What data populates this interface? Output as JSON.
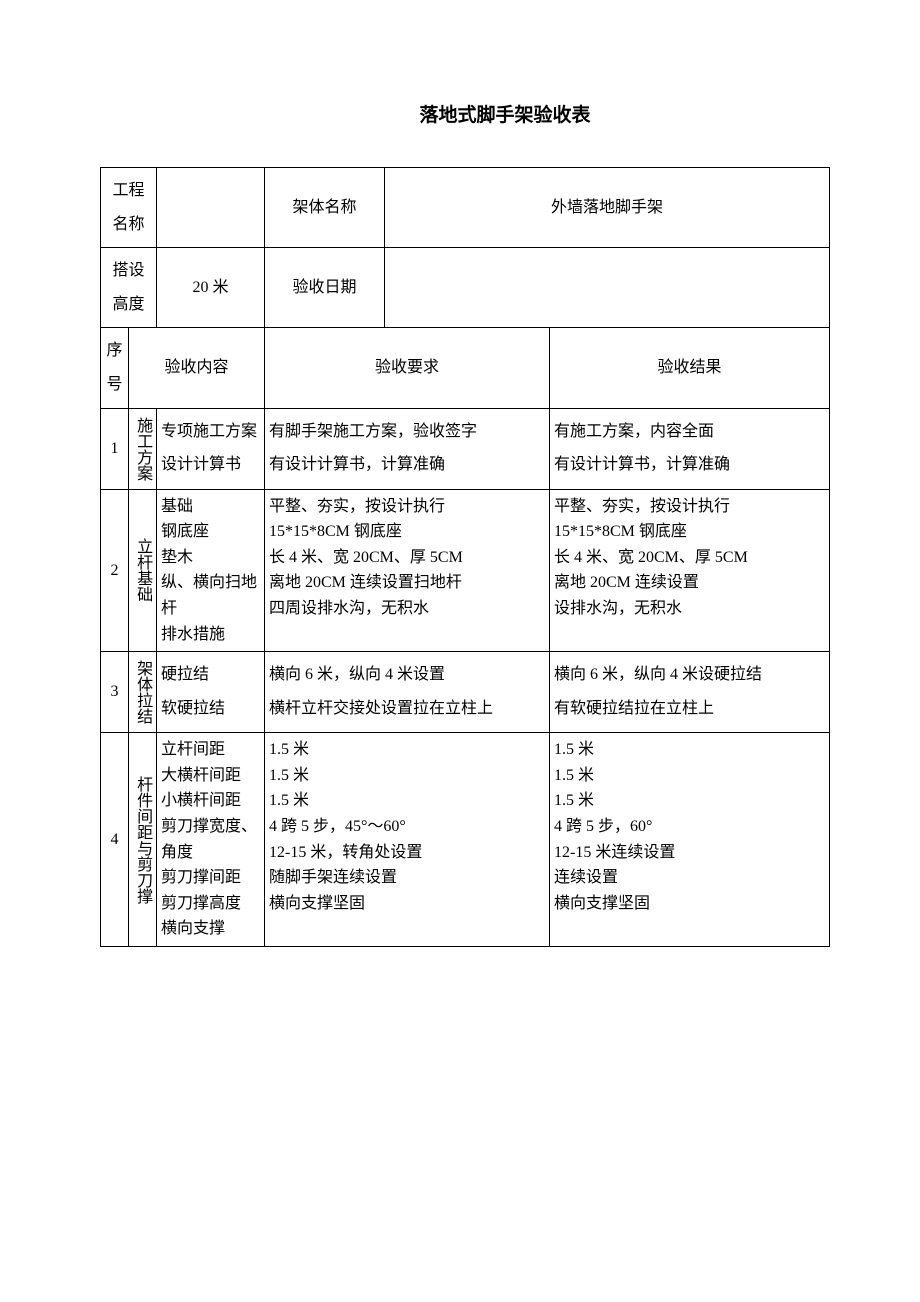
{
  "title": "落地式脚手架验收表",
  "header": {
    "proj_label": "工程名称",
    "proj_value": "",
    "frame_label": "架体名称",
    "frame_value": "外墙落地脚手架",
    "height_label": "搭设高度",
    "height_value": "20 米",
    "date_label": "验收日期",
    "date_value": ""
  },
  "columns": {
    "seq": "序号",
    "content": "验收内容",
    "req": "验收要求",
    "res": "验收结果"
  },
  "rows": [
    {
      "seq": "1",
      "cat": "施工方案",
      "items": "专项施工方案\n设计计算书",
      "req": "有脚手架施工方案，验收签字\n有设计计算书，计算准确",
      "res": "有施工方案，内容全面\n有设计计算书，计算准确"
    },
    {
      "seq": "2",
      "cat": "立杆基础",
      "items": "基础\n钢底座\n垫木\n纵、横向扫地杆\n排水措施",
      "req": "平整、夯实，按设计执行\n15*15*8CM 钢底座\n长 4 米、宽 20CM、厚 5CM\n离地 20CM 连续设置扫地杆\n四周设排水沟，无积水",
      "res": "平整、夯实，按设计执行\n15*15*8CM 钢底座\n长 4 米、宽 20CM、厚 5CM\n离地 20CM 连续设置\n设排水沟，无积水"
    },
    {
      "seq": "3",
      "cat": "架体拉结",
      "items": "硬拉结\n软硬拉结",
      "req": "横向 6 米，纵向 4 米设置\n横杆立杆交接处设置拉在立柱上",
      "res": "横向 6 米，纵向 4 米设硬拉结\n有软硬拉结拉在立柱上"
    },
    {
      "seq": "4",
      "cat": "杆件间距与剪刀撑",
      "items": "立杆间距\n大横杆间距\n小横杆间距\n剪刀撑宽度、角度\n剪刀撑间距\n剪刀撑高度\n横向支撑",
      "req": "1.5 米\n1.5 米\n1.5 米\n4 跨 5 步，45°～60°\n12-15 米，转角处设置\n随脚手架连续设置\n横向支撑坚固",
      "res": "1.5 米\n1.5 米\n1.5 米\n4 跨 5 步，60°\n12-15 米连续设置\n连续设置\n横向支撑坚固"
    }
  ]
}
